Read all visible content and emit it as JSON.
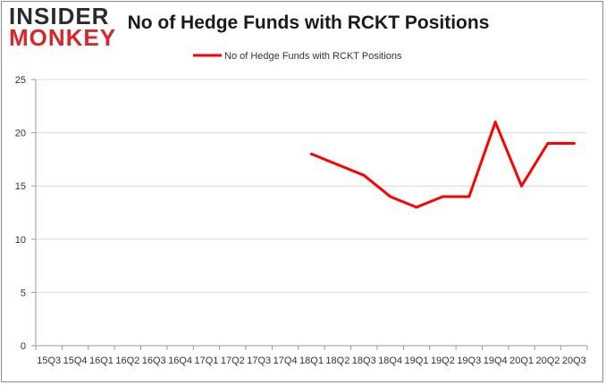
{
  "brand": {
    "line1": "INSIDER",
    "line2": "MONKEY"
  },
  "chart_data": {
    "type": "line",
    "title": "No of Hedge Funds with RCKT Positions",
    "categories": [
      "15Q3",
      "15Q4",
      "16Q1",
      "16Q2",
      "16Q3",
      "16Q4",
      "17Q1",
      "17Q2",
      "17Q3",
      "17Q4",
      "18Q1",
      "18Q2",
      "18Q3",
      "18Q4",
      "19Q1",
      "19Q2",
      "19Q3",
      "19Q4",
      "20Q1",
      "20Q2",
      "20Q3"
    ],
    "series": [
      {
        "name": "No of Hedge Funds with RCKT Positions",
        "values": [
          null,
          null,
          null,
          null,
          null,
          null,
          null,
          null,
          null,
          null,
          18,
          17,
          16,
          14,
          13,
          14,
          14,
          21,
          15,
          19,
          19
        ],
        "color": "#ff0000"
      }
    ],
    "yticks": [
      0,
      5,
      10,
      15,
      20,
      25
    ],
    "ylim": [
      0,
      25
    ],
    "grid": true,
    "legend_position": "top-center"
  }
}
